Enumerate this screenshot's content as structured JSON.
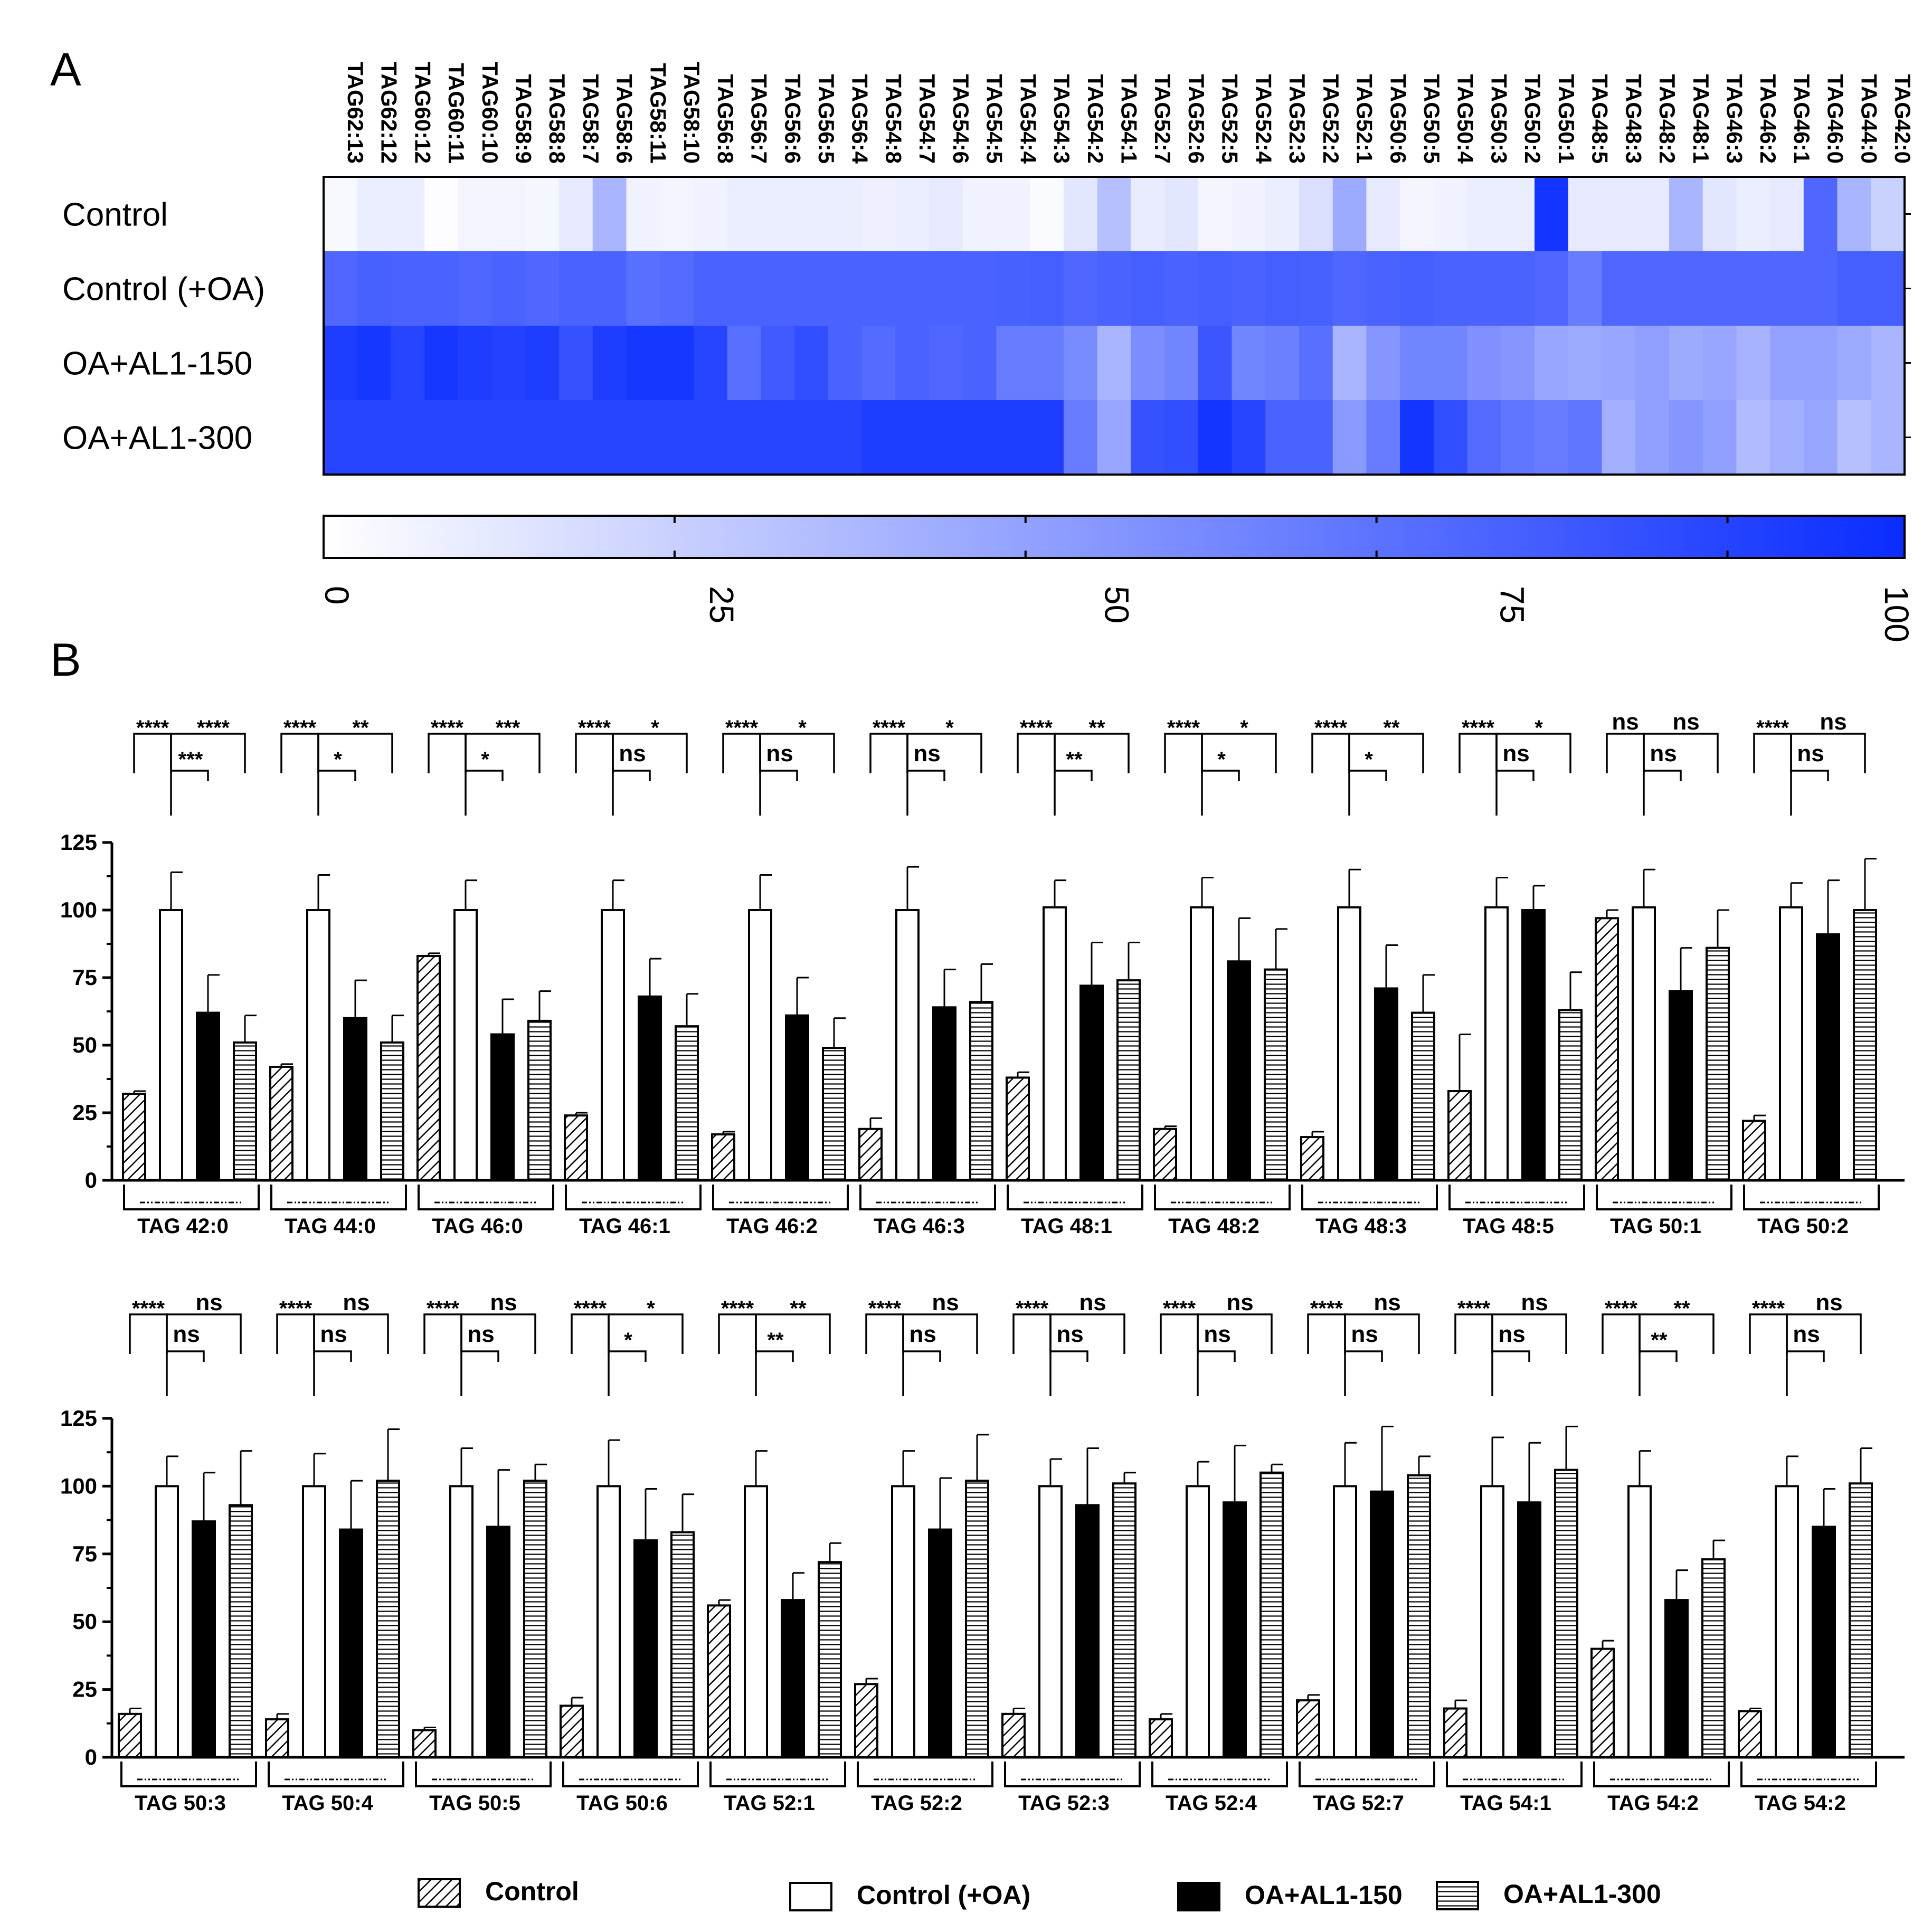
{
  "panel_labels": {
    "a": "A",
    "b": "B"
  },
  "colors": {
    "low": "#ffffff",
    "high": "#0a2cff",
    "bar_edge": "#000000"
  },
  "chart_data": [
    {
      "type": "heatmap",
      "panel": "A",
      "columns": [
        "TAG62:13",
        "TAG62:12",
        "TAG60:12",
        "TAG60:11",
        "TAG60:10",
        "TAG58:9",
        "TAG58:8",
        "TAG58:7",
        "TAG58:6",
        "TAG58:11",
        "TAG58:10",
        "TAG56:8",
        "TAG56:7",
        "TAG56:6",
        "TAG56:5",
        "TAG56:4",
        "TAG54:8",
        "TAG54:7",
        "TAG54:6",
        "TAG54:5",
        "TAG54:4",
        "TAG54:3",
        "TAG54:2",
        "TAG54:1",
        "TAG52:7",
        "TAG52:6",
        "TAG52:5",
        "TAG52:4",
        "TAG52:3",
        "TAG52:2",
        "TAG52:1",
        "TAG50:6",
        "TAG50:5",
        "TAG50:4",
        "TAG50:3",
        "TAG50:2",
        "TAG50:1",
        "TAG48:5",
        "TAG48:3",
        "TAG48:2",
        "TAG48:1",
        "TAG46:3",
        "TAG46:2",
        "TAG46:1",
        "TAG46:0",
        "TAG44:0",
        "TAG42:0"
      ],
      "rows": [
        "Control",
        "Control  (+OA)",
        "OA+AL1-150",
        "OA+AL1-300"
      ],
      "values": [
        [
          3,
          8,
          8,
          1,
          5,
          5,
          4,
          10,
          35,
          6,
          5,
          6,
          8,
          8,
          8,
          8,
          7,
          8,
          10,
          6,
          6,
          2,
          12,
          30,
          9,
          12,
          5,
          6,
          8,
          15,
          40,
          10,
          5,
          6,
          8,
          8,
          96,
          10,
          10,
          10,
          35,
          12,
          8,
          10,
          72,
          35,
          22
        ],
        [
          72,
          75,
          74,
          74,
          72,
          74,
          72,
          74,
          74,
          68,
          70,
          74,
          74,
          74,
          74,
          74,
          74,
          74,
          74,
          74,
          75,
          76,
          72,
          74,
          76,
          74,
          76,
          74,
          76,
          75,
          72,
          74,
          76,
          74,
          74,
          74,
          72,
          62,
          72,
          72,
          72,
          72,
          72,
          72,
          72,
          76,
          76
        ],
        [
          92,
          95,
          88,
          95,
          92,
          90,
          92,
          82,
          92,
          95,
          95,
          88,
          68,
          78,
          84,
          74,
          70,
          74,
          72,
          74,
          62,
          62,
          55,
          35,
          54,
          58,
          80,
          58,
          60,
          68,
          35,
          50,
          58,
          58,
          52,
          50,
          42,
          40,
          42,
          45,
          40,
          42,
          36,
          44,
          44,
          40,
          35
        ],
        [
          88,
          88,
          88,
          88,
          88,
          88,
          88,
          88,
          88,
          88,
          88,
          88,
          88,
          88,
          88,
          88,
          92,
          92,
          92,
          92,
          92,
          92,
          62,
          42,
          82,
          84,
          96,
          88,
          74,
          74,
          48,
          62,
          96,
          84,
          70,
          65,
          62,
          65,
          38,
          45,
          50,
          45,
          32,
          38,
          42,
          30,
          35
        ]
      ],
      "colorbar": {
        "min": 0,
        "max": 100,
        "ticks": [
          0,
          25,
          50,
          75,
          100
        ]
      }
    },
    {
      "type": "bar",
      "panel": "B1",
      "ylim": [
        0,
        125
      ],
      "yticks": [
        0,
        25,
        50,
        75,
        100,
        125
      ],
      "groups": [
        {
          "label": "TAG 42:0",
          "values": [
            32,
            100,
            62,
            51
          ],
          "errors": [
            1,
            14,
            14,
            10
          ],
          "sig": {
            "s1": "****",
            "s2": "****",
            "s3": "***"
          }
        },
        {
          "label": "TAG 44:0",
          "values": [
            42,
            100,
            60,
            51
          ],
          "errors": [
            1,
            13,
            14,
            10
          ],
          "sig": {
            "s1": "****",
            "s2": "**",
            "s3": "*"
          }
        },
        {
          "label": "TAG 46:0",
          "values": [
            83,
            100,
            54,
            59
          ],
          "errors": [
            1,
            11,
            13,
            11
          ],
          "sig": {
            "s1": "****",
            "s2": "***",
            "s3": "*"
          }
        },
        {
          "label": "TAG 46:1",
          "values": [
            24,
            100,
            68,
            57
          ],
          "errors": [
            1,
            11,
            14,
            12
          ],
          "sig": {
            "s1": "****",
            "s2": "*",
            "s3": "ns"
          }
        },
        {
          "label": "TAG 46:2",
          "values": [
            17,
            100,
            61,
            49
          ],
          "errors": [
            1,
            13,
            14,
            11
          ],
          "sig": {
            "s1": "****",
            "s2": "*",
            "s3": "ns"
          }
        },
        {
          "label": "TAG 46:3",
          "values": [
            19,
            100,
            64,
            66
          ],
          "errors": [
            4,
            16,
            14,
            14
          ],
          "sig": {
            "s1": "****",
            "s2": "*",
            "s3": "ns"
          }
        },
        {
          "label": "TAG 48:1",
          "values": [
            38,
            101,
            72,
            74
          ],
          "errors": [
            2,
            10,
            16,
            14
          ],
          "sig": {
            "s1": "****",
            "s2": "**",
            "s3": "**"
          }
        },
        {
          "label": "TAG 48:2",
          "values": [
            19,
            101,
            81,
            78
          ],
          "errors": [
            1,
            11,
            16,
            15
          ],
          "sig": {
            "s1": "****",
            "s2": "*",
            "s3": "*"
          }
        },
        {
          "label": "TAG 48:3",
          "values": [
            16,
            101,
            71,
            62
          ],
          "errors": [
            2,
            14,
            16,
            14
          ],
          "sig": {
            "s1": "****",
            "s2": "**",
            "s3": "*"
          }
        },
        {
          "label": "TAG 48:5",
          "values": [
            33,
            101,
            100,
            63
          ],
          "errors": [
            21,
            11,
            9,
            14
          ],
          "sig": {
            "s1": "****",
            "s2": "*",
            "s3": "ns"
          }
        },
        {
          "label": "TAG 50:1",
          "values": [
            97,
            101,
            70,
            86
          ],
          "errors": [
            3,
            14,
            16,
            14
          ],
          "sig": {
            "s1": "ns",
            "s2": "ns",
            "s3": "ns"
          }
        },
        {
          "label": "TAG 50:2",
          "values": [
            22,
            101,
            91,
            100
          ],
          "errors": [
            2,
            9,
            20,
            19
          ],
          "sig": {
            "s1": "****",
            "s2": "ns",
            "s3": "ns"
          }
        }
      ]
    },
    {
      "type": "bar",
      "panel": "B2",
      "ylim": [
        0,
        125
      ],
      "yticks": [
        0,
        25,
        50,
        75,
        100,
        125
      ],
      "groups": [
        {
          "label": "TAG 50:3",
          "values": [
            16,
            100,
            87,
            93
          ],
          "errors": [
            2,
            11,
            18,
            20
          ],
          "sig": {
            "s1": "****",
            "s2": "ns",
            "s3": "ns"
          }
        },
        {
          "label": "TAG 50:4",
          "values": [
            14,
            100,
            84,
            102
          ],
          "errors": [
            2,
            12,
            18,
            19
          ],
          "sig": {
            "s1": "****",
            "s2": "ns",
            "s3": "ns"
          }
        },
        {
          "label": "TAG 50:5",
          "values": [
            10,
            100,
            85,
            102
          ],
          "errors": [
            1,
            14,
            21,
            6
          ],
          "sig": {
            "s1": "****",
            "s2": "ns",
            "s3": "ns"
          }
        },
        {
          "label": "TAG 50:6",
          "values": [
            19,
            100,
            80,
            83
          ],
          "errors": [
            3,
            17,
            19,
            14
          ],
          "sig": {
            "s1": "****",
            "s2": "*",
            "s3": "*"
          }
        },
        {
          "label": "TAG 52:1",
          "values": [
            56,
            100,
            58,
            72
          ],
          "errors": [
            2,
            13,
            10,
            7
          ],
          "sig": {
            "s1": "****",
            "s2": "**",
            "s3": "**"
          }
        },
        {
          "label": "TAG 52:2",
          "values": [
            27,
            100,
            84,
            102
          ],
          "errors": [
            2,
            13,
            19,
            17
          ],
          "sig": {
            "s1": "****",
            "s2": "ns",
            "s3": "ns"
          }
        },
        {
          "label": "TAG 52:3",
          "values": [
            16,
            100,
            93,
            101
          ],
          "errors": [
            2,
            10,
            21,
            4
          ],
          "sig": {
            "s1": "****",
            "s2": "ns",
            "s3": "ns"
          }
        },
        {
          "label": "TAG 52:4",
          "values": [
            14,
            100,
            94,
            105
          ],
          "errors": [
            2,
            9,
            21,
            3
          ],
          "sig": {
            "s1": "****",
            "s2": "ns",
            "s3": "ns"
          }
        },
        {
          "label": "TAG 52:7",
          "values": [
            21,
            100,
            98,
            104
          ],
          "errors": [
            2,
            16,
            24,
            7
          ],
          "sig": {
            "s1": "****",
            "s2": "ns",
            "s3": "ns"
          }
        },
        {
          "label": "TAG 54:1",
          "values": [
            18,
            100,
            94,
            106
          ],
          "errors": [
            3,
            18,
            22,
            16
          ],
          "sig": {
            "s1": "****",
            "s2": "ns",
            "s3": "ns"
          }
        },
        {
          "label": "TAG 54:2",
          "values": [
            40,
            100,
            58,
            73
          ],
          "errors": [
            3,
            13,
            11,
            7
          ],
          "sig": {
            "s1": "****",
            "s2": "**",
            "s3": "**"
          }
        },
        {
          "label": "TAG 54:2",
          "values": [
            17,
            100,
            85,
            101
          ],
          "errors": [
            1,
            11,
            14,
            13
          ],
          "sig": {
            "s1": "****",
            "s2": "ns",
            "s3": "ns"
          }
        }
      ]
    }
  ],
  "legend": {
    "items": [
      {
        "label": "Control",
        "pattern": "diag"
      },
      {
        "label": "Control  (+OA)",
        "pattern": "white"
      },
      {
        "label": "OA+AL1-150",
        "pattern": "black"
      },
      {
        "label": "OA+AL1-300",
        "pattern": "horiz"
      }
    ]
  }
}
